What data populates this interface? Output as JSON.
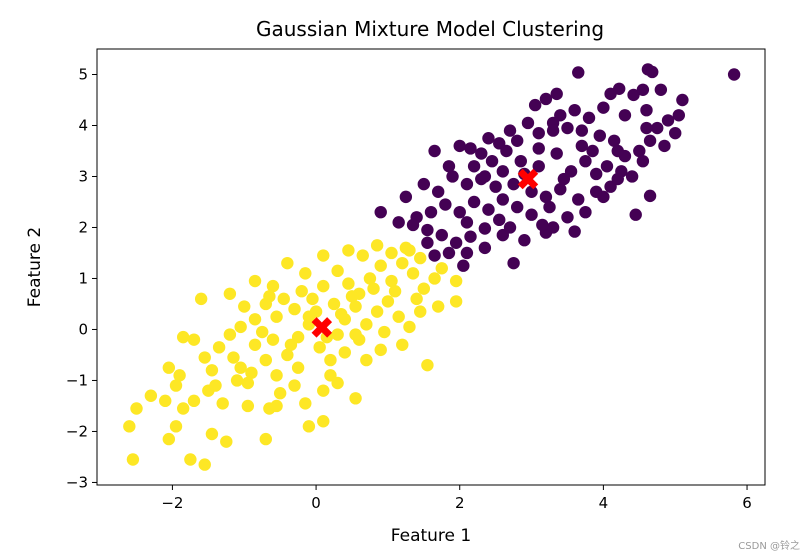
{
  "chart_data": {
    "type": "scatter",
    "title": "Gaussian Mixture Model Clustering",
    "xlabel": "Feature 1",
    "ylabel": "Feature 2",
    "xlim": [
      -3.05,
      6.25
    ],
    "ylim": [
      -3.05,
      5.5
    ],
    "xticks": [
      -2,
      0,
      2,
      4,
      6
    ],
    "yticks": [
      -3,
      -2,
      -1,
      0,
      1,
      2,
      3,
      4,
      5
    ],
    "xtick_labels": [
      "−2",
      "0",
      "2",
      "4",
      "6"
    ],
    "ytick_labels": [
      "−3",
      "−2",
      "−1",
      "0",
      "1",
      "2",
      "3",
      "4",
      "5"
    ],
    "grid": false,
    "series": [
      {
        "color": "#440154",
        "points": [
          [
            5.82,
            5.0
          ],
          [
            3.65,
            5.04
          ],
          [
            4.62,
            5.1
          ],
          [
            4.68,
            5.05
          ],
          [
            4.22,
            4.72
          ],
          [
            4.1,
            4.62
          ],
          [
            4.42,
            4.6
          ],
          [
            4.55,
            4.7
          ],
          [
            4.8,
            4.7
          ],
          [
            5.1,
            4.5
          ],
          [
            3.35,
            4.62
          ],
          [
            3.2,
            4.52
          ],
          [
            3.05,
            4.4
          ],
          [
            3.4,
            4.2
          ],
          [
            3.6,
            4.3
          ],
          [
            3.8,
            4.15
          ],
          [
            4.0,
            4.35
          ],
          [
            4.3,
            4.2
          ],
          [
            4.6,
            4.3
          ],
          [
            4.9,
            4.1
          ],
          [
            5.05,
            4.2
          ],
          [
            5.0,
            3.85
          ],
          [
            4.75,
            3.95
          ],
          [
            4.85,
            3.6
          ],
          [
            4.65,
            3.7
          ],
          [
            4.5,
            3.5
          ],
          [
            4.3,
            3.4
          ],
          [
            4.15,
            3.7
          ],
          [
            3.95,
            3.8
          ],
          [
            3.7,
            3.9
          ],
          [
            3.5,
            3.95
          ],
          [
            3.3,
            4.05
          ],
          [
            3.1,
            3.85
          ],
          [
            2.95,
            4.05
          ],
          [
            2.8,
            3.7
          ],
          [
            2.7,
            3.9
          ],
          [
            2.55,
            3.65
          ],
          [
            2.4,
            3.75
          ],
          [
            2.3,
            3.45
          ],
          [
            2.15,
            3.55
          ],
          [
            2.0,
            3.6
          ],
          [
            2.2,
            3.2
          ],
          [
            2.45,
            3.3
          ],
          [
            2.6,
            3.1
          ],
          [
            2.85,
            3.3
          ],
          [
            3.1,
            3.2
          ],
          [
            3.35,
            3.45
          ],
          [
            3.55,
            3.1
          ],
          [
            3.75,
            3.3
          ],
          [
            3.9,
            3.05
          ],
          [
            4.05,
            3.2
          ],
          [
            4.25,
            3.1
          ],
          [
            4.4,
            3.0
          ],
          [
            4.55,
            3.3
          ],
          [
            4.1,
            2.8
          ],
          [
            3.9,
            2.7
          ],
          [
            3.65,
            2.55
          ],
          [
            3.4,
            2.75
          ],
          [
            3.2,
            2.6
          ],
          [
            3.0,
            2.7
          ],
          [
            2.75,
            2.85
          ],
          [
            2.5,
            2.8
          ],
          [
            2.3,
            2.95
          ],
          [
            2.1,
            2.85
          ],
          [
            1.9,
            3.0
          ],
          [
            1.7,
            2.7
          ],
          [
            1.5,
            2.85
          ],
          [
            1.65,
            3.5
          ],
          [
            1.85,
            3.2
          ],
          [
            1.25,
            2.6
          ],
          [
            1.4,
            2.2
          ],
          [
            1.6,
            2.3
          ],
          [
            1.8,
            2.45
          ],
          [
            2.0,
            2.3
          ],
          [
            2.2,
            2.5
          ],
          [
            2.4,
            2.35
          ],
          [
            2.6,
            2.55
          ],
          [
            2.8,
            2.4
          ],
          [
            3.0,
            2.25
          ],
          [
            3.25,
            2.4
          ],
          [
            3.5,
            2.2
          ],
          [
            3.75,
            2.3
          ],
          [
            4.0,
            2.6
          ],
          [
            4.45,
            2.25
          ],
          [
            4.65,
            2.62
          ],
          [
            3.6,
            1.92
          ],
          [
            3.2,
            1.9
          ],
          [
            2.9,
            1.75
          ],
          [
            2.6,
            1.85
          ],
          [
            2.35,
            1.98
          ],
          [
            2.15,
            1.82
          ],
          [
            1.95,
            1.7
          ],
          [
            1.75,
            1.85
          ],
          [
            1.55,
            1.95
          ],
          [
            1.35,
            2.05
          ],
          [
            1.15,
            2.1
          ],
          [
            0.9,
            2.3
          ],
          [
            1.85,
            1.5
          ],
          [
            2.1,
            1.5
          ],
          [
            1.65,
            1.45
          ],
          [
            2.35,
            1.6
          ],
          [
            2.75,
            1.3
          ],
          [
            3.3,
            2.0
          ],
          [
            2.05,
            1.25
          ],
          [
            1.55,
            1.7
          ],
          [
            3.1,
            3.55
          ],
          [
            2.9,
            3.05
          ],
          [
            3.3,
            3.9
          ],
          [
            3.7,
            3.6
          ],
          [
            4.2,
            3.5
          ],
          [
            4.6,
            3.95
          ],
          [
            2.65,
            3.5
          ],
          [
            2.35,
            3.0
          ],
          [
            2.1,
            2.1
          ],
          [
            2.55,
            2.15
          ],
          [
            2.7,
            2.0
          ],
          [
            3.45,
            2.95
          ],
          [
            3.85,
            3.5
          ],
          [
            4.2,
            2.95
          ],
          [
            3.15,
            2.05
          ]
        ]
      },
      {
        "color": "#fde725",
        "points": [
          [
            -2.55,
            -2.55
          ],
          [
            -2.6,
            -1.9
          ],
          [
            -2.5,
            -1.55
          ],
          [
            -2.3,
            -1.3
          ],
          [
            -2.05,
            -2.15
          ],
          [
            -1.95,
            -1.9
          ],
          [
            -1.75,
            -2.55
          ],
          [
            -1.55,
            -2.65
          ],
          [
            -1.45,
            -2.05
          ],
          [
            -1.25,
            -2.2
          ],
          [
            -2.1,
            -1.4
          ],
          [
            -1.95,
            -1.1
          ],
          [
            -2.05,
            -0.75
          ],
          [
            -1.9,
            -0.9
          ],
          [
            -1.85,
            -1.55
          ],
          [
            -1.7,
            -1.4
          ],
          [
            -1.5,
            -1.2
          ],
          [
            -1.3,
            -1.45
          ],
          [
            -1.1,
            -1.0
          ],
          [
            -0.95,
            -1.5
          ],
          [
            -0.7,
            -2.15
          ],
          [
            -0.65,
            -1.55
          ],
          [
            -0.5,
            -1.25
          ],
          [
            -0.3,
            -1.1
          ],
          [
            -0.1,
            -1.9
          ],
          [
            0.1,
            -1.8
          ],
          [
            0.1,
            -1.2
          ],
          [
            0.3,
            -1.05
          ],
          [
            0.55,
            -1.35
          ],
          [
            0.2,
            -0.6
          ],
          [
            -1.7,
            -0.2
          ],
          [
            -1.55,
            -0.55
          ],
          [
            -1.35,
            -0.35
          ],
          [
            -1.2,
            -0.1
          ],
          [
            -1.05,
            0.05
          ],
          [
            -0.85,
            -0.3
          ],
          [
            -0.7,
            -0.6
          ],
          [
            -0.55,
            -0.9
          ],
          [
            -0.4,
            -0.5
          ],
          [
            -0.25,
            -0.15
          ],
          [
            -0.1,
            0.1
          ],
          [
            0.05,
            -0.35
          ],
          [
            -1.0,
            0.45
          ],
          [
            -0.85,
            0.2
          ],
          [
            -0.7,
            0.5
          ],
          [
            -0.6,
            0.85
          ],
          [
            -0.45,
            0.6
          ],
          [
            -0.3,
            0.4
          ],
          [
            -0.2,
            0.75
          ],
          [
            -0.05,
            0.6
          ],
          [
            0.1,
            0.85
          ],
          [
            0.25,
            0.5
          ],
          [
            0.4,
            0.2
          ],
          [
            0.55,
            0.45
          ],
          [
            0.7,
            0.1
          ],
          [
            0.85,
            0.35
          ],
          [
            1.0,
            0.55
          ],
          [
            1.15,
            0.25
          ],
          [
            1.3,
            0.05
          ],
          [
            1.45,
            0.35
          ],
          [
            0.3,
            1.15
          ],
          [
            0.45,
            0.9
          ],
          [
            0.6,
            0.7
          ],
          [
            0.75,
            1.0
          ],
          [
            0.9,
            1.25
          ],
          [
            1.05,
            0.95
          ],
          [
            1.2,
            1.3
          ],
          [
            1.35,
            1.1
          ],
          [
            1.5,
            0.8
          ],
          [
            1.65,
            1.0
          ],
          [
            0.45,
            1.55
          ],
          [
            0.65,
            1.45
          ],
          [
            0.85,
            1.65
          ],
          [
            1.05,
            1.5
          ],
          [
            1.25,
            1.6
          ],
          [
            1.45,
            1.4
          ],
          [
            1.75,
            1.2
          ],
          [
            1.95,
            0.95
          ],
          [
            1.95,
            0.55
          ],
          [
            1.3,
            1.55
          ],
          [
            -0.85,
            0.95
          ],
          [
            -0.65,
            0.65
          ],
          [
            -0.4,
            1.3
          ],
          [
            -0.15,
            1.1
          ],
          [
            0.1,
            1.45
          ],
          [
            -0.1,
            0.25
          ],
          [
            0.3,
            -0.1
          ],
          [
            0.6,
            -0.2
          ],
          [
            0.9,
            -0.4
          ],
          [
            1.2,
            -0.3
          ],
          [
            1.55,
            -0.7
          ],
          [
            0.7,
            -0.6
          ],
          [
            0.4,
            -0.45
          ],
          [
            -1.2,
            0.7
          ],
          [
            -1.6,
            0.6
          ],
          [
            -1.85,
            -0.15
          ],
          [
            -1.45,
            -0.8
          ],
          [
            -1.15,
            -0.55
          ],
          [
            -0.9,
            -0.85
          ],
          [
            -0.6,
            -0.2
          ],
          [
            -0.35,
            -0.3
          ],
          [
            0.0,
            0.35
          ],
          [
            0.15,
            -0.15
          ],
          [
            0.5,
            0.65
          ],
          [
            0.8,
            0.8
          ],
          [
            1.1,
            0.75
          ],
          [
            1.4,
            0.6
          ],
          [
            1.7,
            0.45
          ],
          [
            0.95,
            -0.05
          ],
          [
            0.35,
            0.3
          ],
          [
            -0.55,
            0.25
          ],
          [
            -0.75,
            -0.05
          ],
          [
            -0.25,
            -0.75
          ],
          [
            -1.05,
            -0.75
          ],
          [
            -1.4,
            -1.1
          ],
          [
            -0.55,
            -1.5
          ],
          [
            -0.95,
            -1.05
          ],
          [
            -0.15,
            -1.45
          ],
          [
            0.2,
            -0.9
          ],
          [
            0.55,
            -0.1
          ]
        ]
      }
    ],
    "centers": [
      [
        0.08,
        0.04
      ],
      [
        2.95,
        2.95
      ]
    ],
    "center_color": "#ff0000",
    "center_marker": "X"
  },
  "watermark": "CSDN @铃之"
}
